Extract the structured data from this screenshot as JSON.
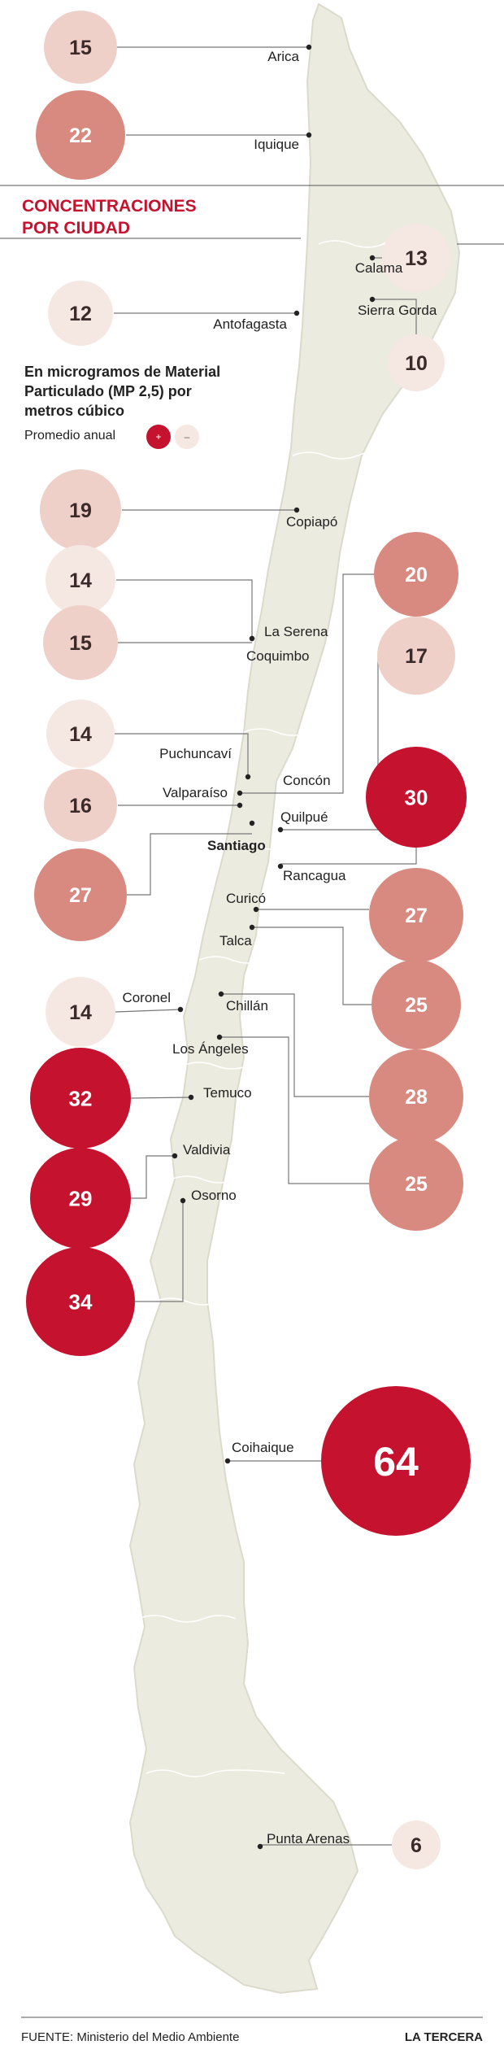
{
  "header": {
    "title_line1": "CONCENTRACIONES",
    "title_line2": "POR CIUDAD",
    "subtitle_line1": "En microgramos de Material",
    "subtitle_line2": "Particulado (MP 2,5) por",
    "subtitle_line3": "metros cúbico",
    "legend_label": "Promedio anual",
    "legend_high": "+",
    "legend_low": "–"
  },
  "footer": {
    "source": "FUENTE: Ministerio del Medio Ambiente",
    "brand": "LA TERCERA"
  },
  "colors": {
    "map": "#ecebe0",
    "map_border": "#dcdacb",
    "level_low": "#f5e7e2",
    "level_mid": "#efd0c9",
    "level_high": "#d98a80",
    "level_max": "#c4122f",
    "title": "#c4122f"
  },
  "chart_data": {
    "type": "bubble-map",
    "unit": "MP 2,5",
    "cities": [
      {
        "name": "Arica",
        "value": 15
      },
      {
        "name": "Iquique",
        "value": 22
      },
      {
        "name": "Calama",
        "value": 13
      },
      {
        "name": "Sierra Gorda",
        "value": 10
      },
      {
        "name": "Antofagasta",
        "value": 12
      },
      {
        "name": "Copiapó",
        "value": 19
      },
      {
        "name": "La Serena",
        "value": 14
      },
      {
        "name": "Coquimbo",
        "value": 15
      },
      {
        "name": "Puchuncaví",
        "value": 14
      },
      {
        "name": "Valparaíso",
        "value": 16
      },
      {
        "name": "Concón",
        "value": 20
      },
      {
        "name": "Quilpué",
        "value": 17
      },
      {
        "name": "Santiago",
        "value": 27
      },
      {
        "name": "Rancagua",
        "value": 30
      },
      {
        "name": "Curicó",
        "value": 27
      },
      {
        "name": "Talca",
        "value": 25
      },
      {
        "name": "Chillán",
        "value": 28
      },
      {
        "name": "Coronel",
        "value": 14
      },
      {
        "name": "Los Ángeles",
        "value": 25
      },
      {
        "name": "Temuco",
        "value": 32
      },
      {
        "name": "Valdivia",
        "value": 29
      },
      {
        "name": "Osorno",
        "value": 34
      },
      {
        "name": "Coihaique",
        "value": 64
      },
      {
        "name": "Punta Arenas",
        "value": 6
      }
    ]
  }
}
